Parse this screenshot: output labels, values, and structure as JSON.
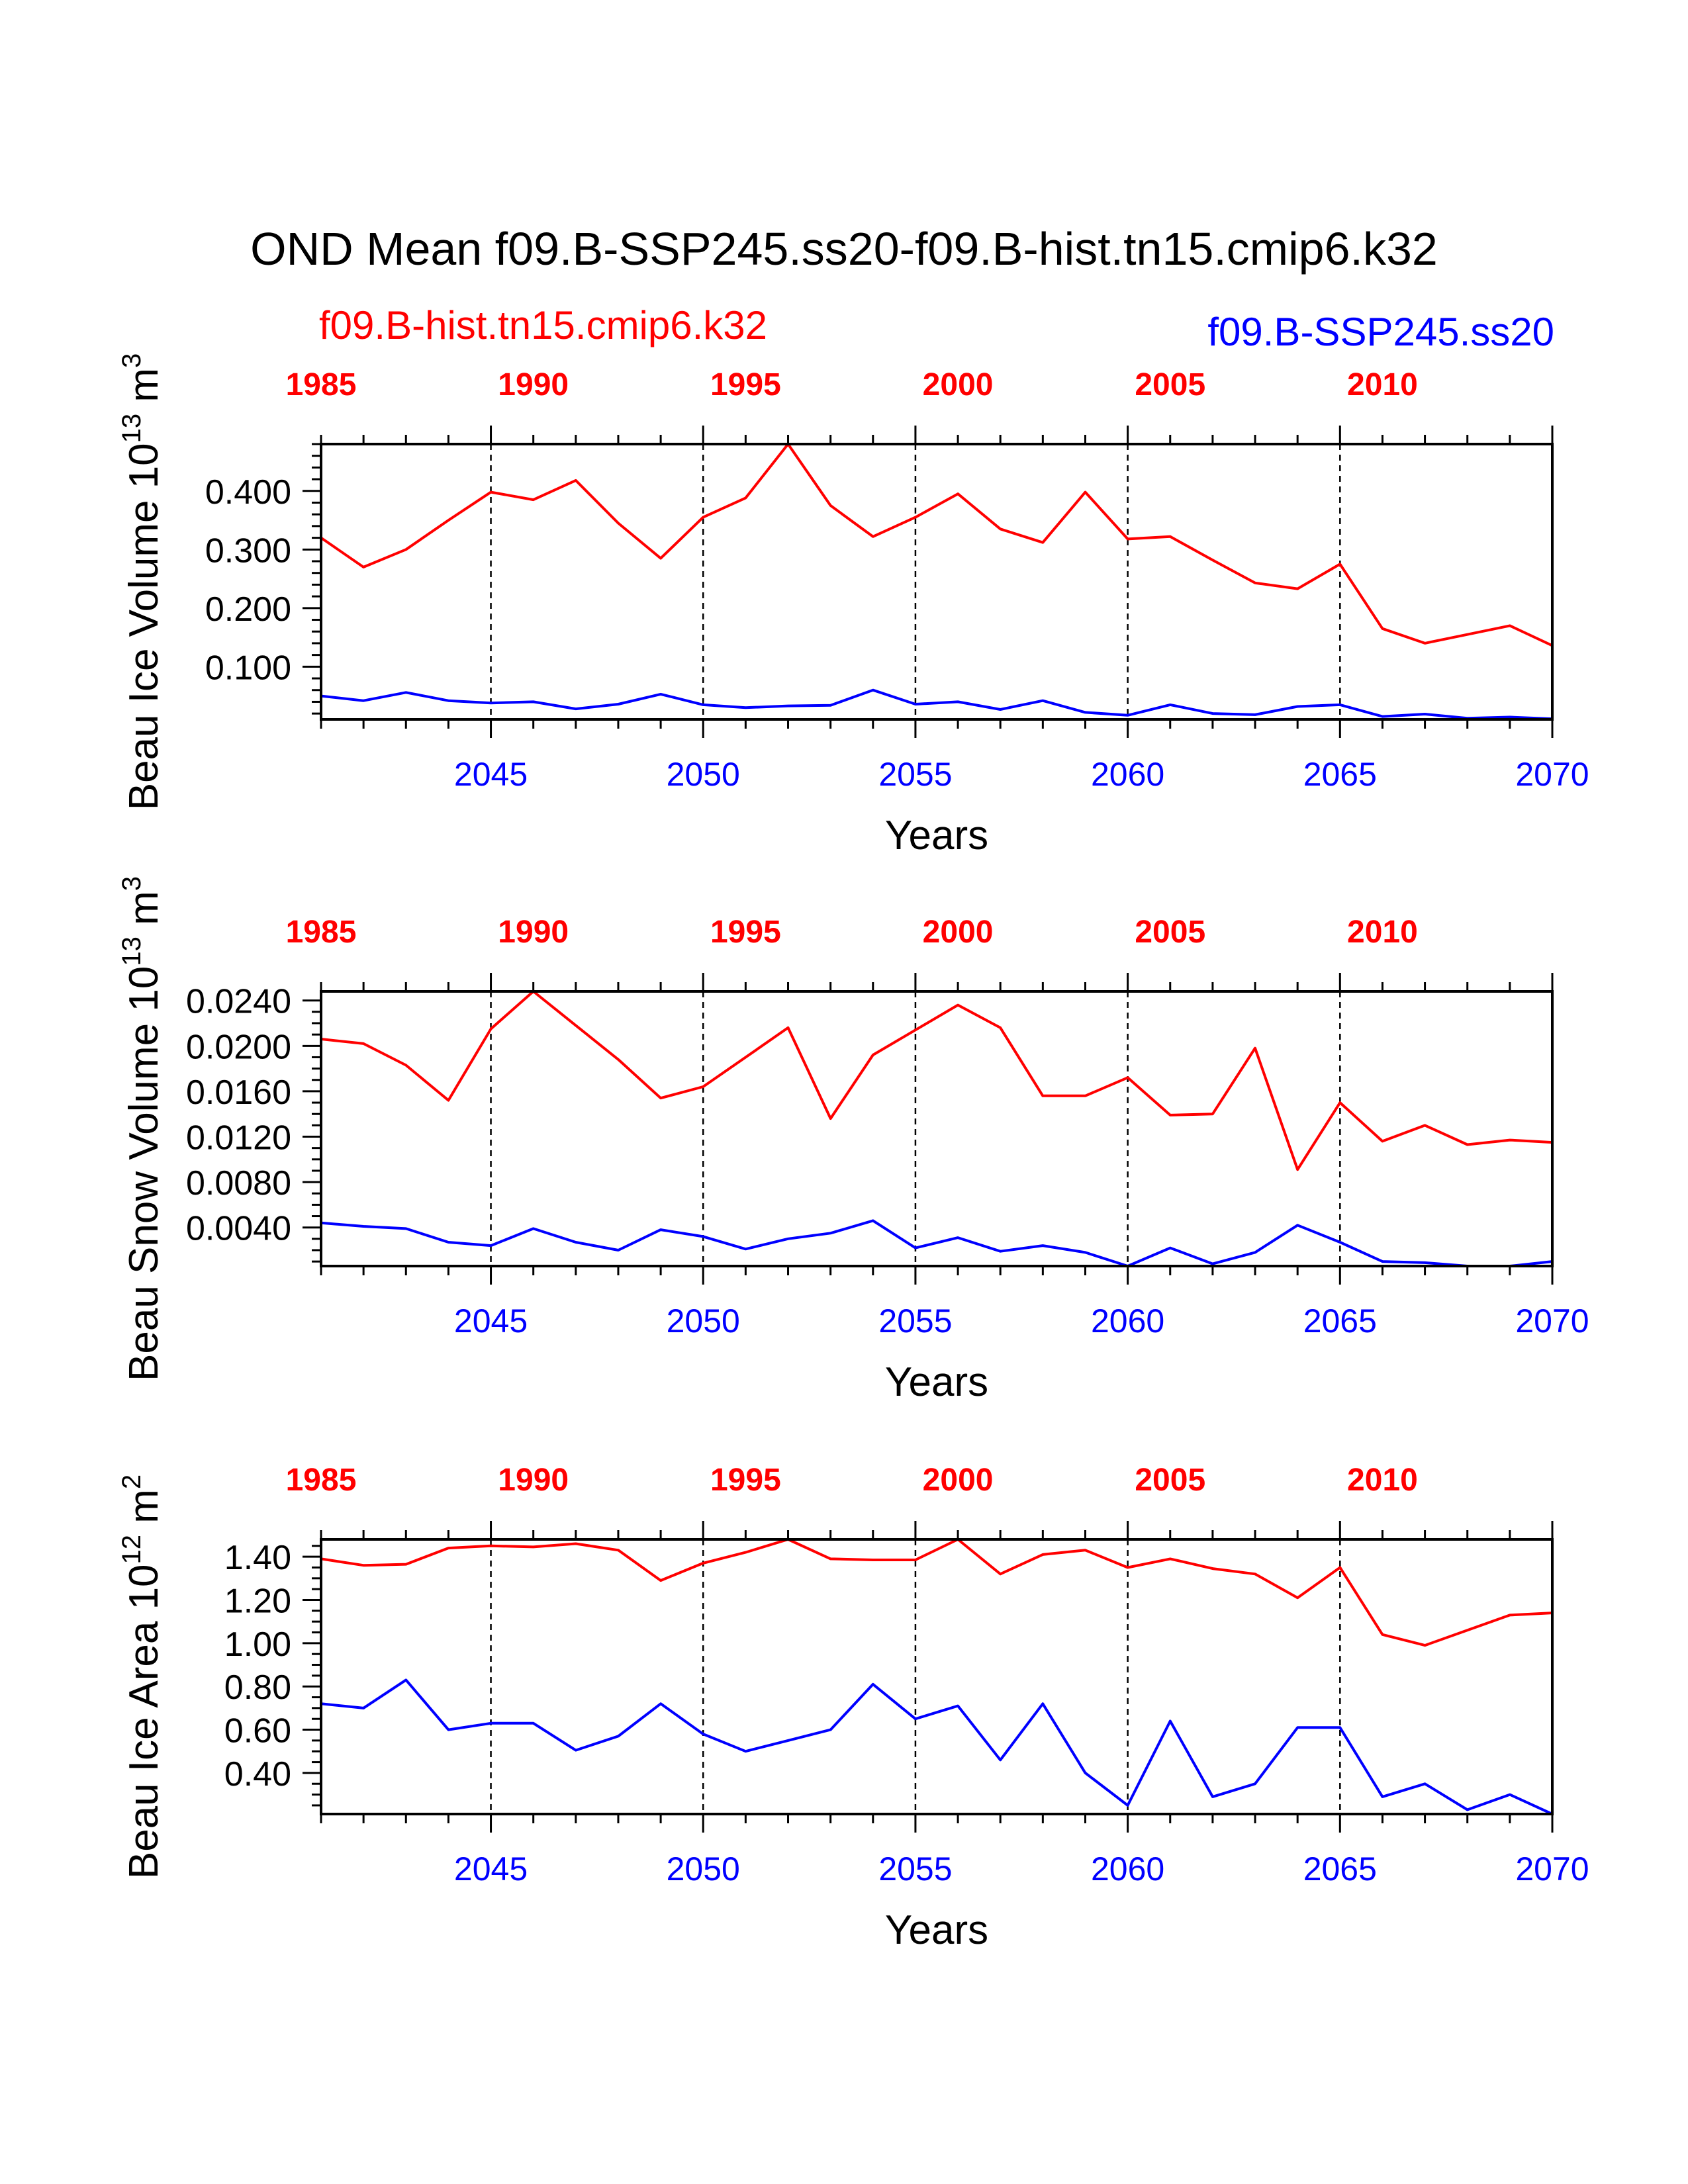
{
  "title": "OND Mean f09.B-SSP245.ss20-f09.B-hist.tn15.cmip6.k32",
  "legend": {
    "hist_label": "f09.B-hist.tn15.cmip6.k32",
    "ssp_label": "f09.B-SSP245.ss20",
    "hist_color": "#ff0000",
    "ssp_color": "#0000ff"
  },
  "chart_data": [
    {
      "type": "line",
      "ylabel": "Beau Ice Volume 10",
      "ylabel_exp": "13",
      "ylabel_unit": " m",
      "ylabel_unit_exp": "3",
      "xlabel": "Years",
      "ylim": [
        0.01,
        0.48
      ],
      "yticks": [
        0.1,
        0.2,
        0.3,
        0.4
      ],
      "ytick_labels": [
        "0.100",
        "0.200",
        "0.300",
        "0.400"
      ],
      "yminor": 0.02,
      "xlim": [
        2041,
        2070
      ],
      "xticks_bottom": [
        2045,
        2050,
        2055,
        2060,
        2065,
        2070
      ],
      "xtick_labels_bottom": [
        "2045",
        "2050",
        "2055",
        "2060",
        "2065",
        "2070"
      ],
      "xticks_top": [
        1985,
        1990,
        1995,
        2000,
        2005,
        2010
      ],
      "xtick_labels_top": [
        "1985",
        "1990",
        "1995",
        "2000",
        "2005",
        "2010"
      ],
      "grid_x": [
        2045,
        2050,
        2055,
        2060,
        2065
      ],
      "series": [
        {
          "name": "f09.B-hist.tn15.cmip6.k32",
          "color": "#ff0000",
          "values": [
            0.32,
            0.27,
            0.3,
            0.35,
            0.398,
            0.385,
            0.418,
            0.345,
            0.285,
            0.355,
            0.388,
            0.48,
            0.375,
            0.322,
            0.355,
            0.395,
            0.335,
            0.312,
            0.398,
            0.318,
            0.322,
            0.282,
            0.243,
            0.233,
            0.275,
            0.165,
            0.14,
            0.155,
            0.17,
            0.136
          ]
        },
        {
          "name": "f09.B-SSP245.ss20",
          "color": "#0000ff",
          "values": [
            0.05,
            0.042,
            0.056,
            0.042,
            0.038,
            0.04,
            0.028,
            0.036,
            0.053,
            0.035,
            0.03,
            0.033,
            0.034,
            0.06,
            0.036,
            0.04,
            0.027,
            0.042,
            0.022,
            0.017,
            0.035,
            0.02,
            0.018,
            0.032,
            0.035,
            0.015,
            0.019,
            0.012,
            0.014,
            0.011
          ]
        }
      ]
    },
    {
      "type": "line",
      "ylabel": "Beau Snow Volume 10",
      "ylabel_exp": "13",
      "ylabel_unit": " m",
      "ylabel_unit_exp": "3",
      "xlabel": "Years",
      "ylim": [
        0.0006,
        0.0248
      ],
      "yticks": [
        0.004,
        0.008,
        0.012,
        0.016,
        0.02,
        0.024
      ],
      "ytick_labels": [
        "0.0040",
        "0.0080",
        "0.0120",
        "0.0160",
        "0.0200",
        "0.0240"
      ],
      "yminor": 0.001,
      "xlim": [
        2041,
        2070
      ],
      "xticks_bottom": [
        2045,
        2050,
        2055,
        2060,
        2065,
        2070
      ],
      "xtick_labels_bottom": [
        "2045",
        "2050",
        "2055",
        "2060",
        "2065",
        "2070"
      ],
      "xticks_top": [
        1985,
        1990,
        1995,
        2000,
        2005,
        2010
      ],
      "xtick_labels_top": [
        "1985",
        "1990",
        "1995",
        "2000",
        "2005",
        "2010"
      ],
      "grid_x": [
        2045,
        2050,
        2055,
        2060,
        2065
      ],
      "series": [
        {
          "name": "f09.B-hist.tn15.cmip6.k32",
          "color": "#ff0000",
          "values": [
            0.0206,
            0.0202,
            0.0183,
            0.0152,
            0.0215,
            0.0248,
            0.0218,
            0.0188,
            0.0154,
            0.0164,
            0.019,
            0.0216,
            0.0136,
            0.0192,
            0.0214,
            0.0236,
            0.0216,
            0.0156,
            0.0156,
            0.0172,
            0.0139,
            0.014,
            0.0198,
            0.0091,
            0.015,
            0.0116,
            0.013,
            0.0113,
            0.0117,
            0.0115
          ]
        },
        {
          "name": "f09.B-SSP245.ss20",
          "color": "#0000ff",
          "values": [
            0.0044,
            0.0041,
            0.0039,
            0.0027,
            0.0024,
            0.0039,
            0.0027,
            0.002,
            0.0038,
            0.0032,
            0.0021,
            0.003,
            0.0035,
            0.0046,
            0.0022,
            0.0031,
            0.0019,
            0.0024,
            0.0018,
            0.0006,
            0.0022,
            0.0008,
            0.0018,
            0.0042,
            0.0027,
            0.001,
            0.0009,
            0.0006,
            0.0006,
            0.001
          ]
        }
      ]
    },
    {
      "type": "line",
      "ylabel": "Beau Ice Area 10",
      "ylabel_exp": "12",
      "ylabel_unit": " m",
      "ylabel_unit_exp": "2",
      "xlabel": "Years",
      "ylim": [
        0.21,
        1.48
      ],
      "yticks": [
        0.4,
        0.6,
        0.8,
        1.0,
        1.2,
        1.4
      ],
      "ytick_labels": [
        "0.40",
        "0.60",
        "0.80",
        "1.00",
        "1.20",
        "1.40"
      ],
      "yminor": 0.05,
      "xlim": [
        2041,
        2070
      ],
      "xticks_bottom": [
        2045,
        2050,
        2055,
        2060,
        2065,
        2070
      ],
      "xtick_labels_bottom": [
        "2045",
        "2050",
        "2055",
        "2060",
        "2065",
        "2070"
      ],
      "xticks_top": [
        1985,
        1990,
        1995,
        2000,
        2005,
        2010
      ],
      "xtick_labels_top": [
        "1985",
        "1990",
        "1995",
        "2000",
        "2005",
        "2010"
      ],
      "grid_x": [
        2045,
        2050,
        2055,
        2060,
        2065
      ],
      "series": [
        {
          "name": "f09.B-hist.tn15.cmip6.k32",
          "color": "#ff0000",
          "values": [
            1.39,
            1.36,
            1.365,
            1.44,
            1.45,
            1.445,
            1.46,
            1.43,
            1.29,
            1.37,
            1.42,
            1.48,
            1.39,
            1.385,
            1.385,
            1.48,
            1.32,
            1.41,
            1.43,
            1.35,
            1.39,
            1.345,
            1.32,
            1.21,
            1.35,
            1.04,
            0.99,
            1.06,
            1.13,
            1.14
          ]
        },
        {
          "name": "f09.B-SSP245.ss20",
          "color": "#0000ff",
          "values": [
            0.72,
            0.7,
            0.83,
            0.6,
            0.63,
            0.63,
            0.505,
            0.57,
            0.72,
            0.58,
            0.5,
            0.55,
            0.6,
            0.81,
            0.65,
            0.71,
            0.46,
            0.72,
            0.4,
            0.25,
            0.64,
            0.29,
            0.35,
            0.61,
            0.61,
            0.29,
            0.35,
            0.23,
            0.3,
            0.21
          ]
        }
      ]
    }
  ]
}
